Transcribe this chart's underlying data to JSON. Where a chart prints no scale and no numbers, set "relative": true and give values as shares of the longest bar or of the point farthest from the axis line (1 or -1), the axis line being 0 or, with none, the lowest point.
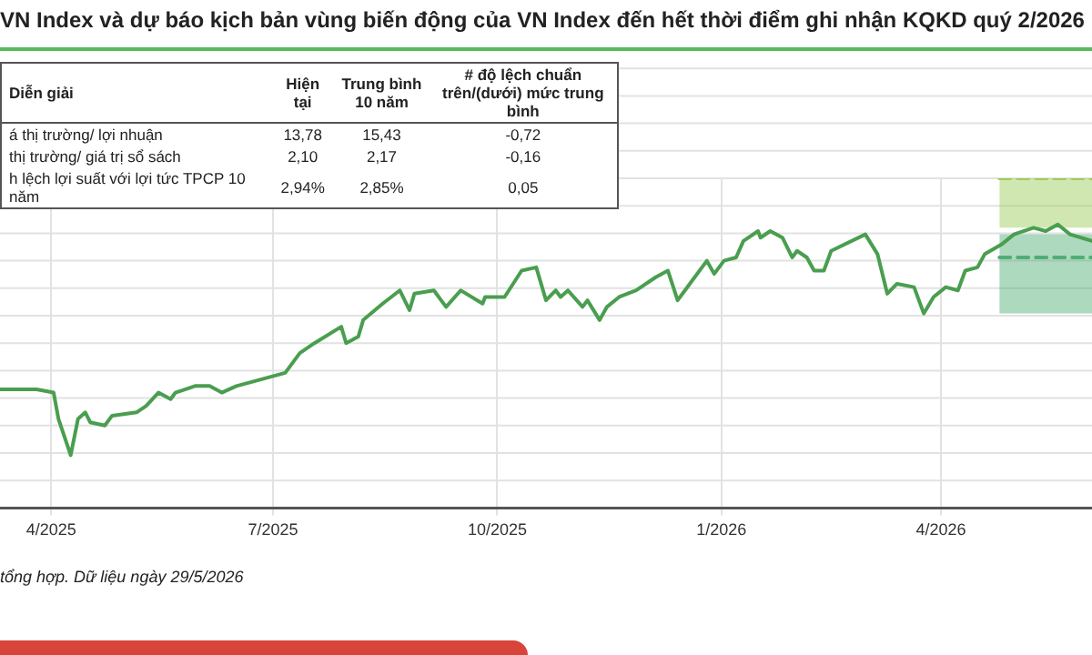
{
  "chart_data": {
    "type": "line",
    "title": "VN Index và dự báo kịch bản vùng biến động của VN Index đến hết thời điểm ghi nhận KQKD quý 2/2026",
    "relative": true,
    "grid": true,
    "marker": "none",
    "xlim": [
      "2025-03-11",
      "2026-06-02"
    ],
    "xticks": [
      {
        "value": "2025-04-01",
        "label": "4/2025"
      },
      {
        "value": "2025-07-01",
        "label": "7/2025"
      },
      {
        "value": "2025-10-01",
        "label": "10/2025"
      },
      {
        "value": "2026-01-01",
        "label": "1/2026"
      },
      {
        "value": "2026-04-01",
        "label": "4/2026"
      }
    ],
    "x": [
      "2025-03-11",
      "2025-03-19",
      "2025-03-26",
      "2025-04-02",
      "2025-04-04",
      "2025-04-09",
      "2025-04-12",
      "2025-04-15",
      "2025-04-17",
      "2025-04-23",
      "2025-04-26",
      "2025-05-06",
      "2025-05-10",
      "2025-05-15",
      "2025-05-20",
      "2025-05-22",
      "2025-05-30",
      "2025-06-05",
      "2025-06-10",
      "2025-06-16",
      "2025-06-26",
      "2025-07-06",
      "2025-07-12",
      "2025-07-18",
      "2025-07-29",
      "2025-07-31",
      "2025-08-05",
      "2025-08-07",
      "2025-08-15",
      "2025-08-22",
      "2025-08-26",
      "2025-08-28",
      "2025-09-05",
      "2025-09-10",
      "2025-09-16",
      "2025-09-25",
      "2025-09-26",
      "2025-10-04",
      "2025-10-11",
      "2025-10-17",
      "2025-10-21",
      "2025-10-25",
      "2025-10-27",
      "2025-10-30",
      "2025-11-05",
      "2025-11-07",
      "2025-11-12",
      "2025-11-15",
      "2025-11-20",
      "2025-11-27",
      "2025-12-05",
      "2025-12-10",
      "2025-12-14",
      "2025-12-17",
      "2025-12-26",
      "2025-12-29",
      "2026-01-02",
      "2026-01-07",
      "2026-01-10",
      "2026-01-16",
      "2026-01-17",
      "2026-01-21",
      "2026-01-26",
      "2026-01-30",
      "2026-02-01",
      "2026-02-05",
      "2026-02-08",
      "2026-02-12",
      "2026-02-15",
      "2026-03-01",
      "2026-03-06",
      "2026-03-10",
      "2026-03-14",
      "2026-03-21",
      "2026-03-25",
      "2026-03-29",
      "2026-04-03",
      "2026-04-08",
      "2026-04-11",
      "2026-04-16",
      "2026-04-19",
      "2026-04-26",
      "2026-05-01",
      "2026-05-09",
      "2026-05-14",
      "2026-05-19",
      "2026-05-24",
      "2026-06-02"
    ],
    "series": [
      {
        "color": "#4a9e4f",
        "line_style": "solid",
        "values": [
          0.36,
          0.36,
          0.36,
          0.35,
          0.27,
          0.16,
          0.27,
          0.29,
          0.26,
          0.25,
          0.28,
          0.29,
          0.31,
          0.35,
          0.33,
          0.35,
          0.37,
          0.37,
          0.35,
          0.37,
          0.39,
          0.41,
          0.47,
          0.5,
          0.55,
          0.5,
          0.52,
          0.57,
          0.62,
          0.66,
          0.6,
          0.65,
          0.66,
          0.61,
          0.66,
          0.62,
          0.64,
          0.64,
          0.72,
          0.73,
          0.63,
          0.66,
          0.64,
          0.66,
          0.61,
          0.63,
          0.57,
          0.61,
          0.64,
          0.66,
          0.7,
          0.72,
          0.63,
          0.66,
          0.75,
          0.71,
          0.75,
          0.76,
          0.81,
          0.84,
          0.82,
          0.84,
          0.82,
          0.76,
          0.78,
          0.76,
          0.72,
          0.72,
          0.78,
          0.83,
          0.77,
          0.65,
          0.68,
          0.67,
          0.59,
          0.64,
          0.67,
          0.66,
          0.72,
          0.73,
          0.77,
          0.8,
          0.83,
          0.85,
          0.84,
          0.86,
          0.83,
          0.81
        ]
      },
      {
        "type": "line",
        "color": "#9ccc5a",
        "line_style": "dashed",
        "x": [
          "2026-04-25",
          "2026-06-02"
        ],
        "values": [
          1,
          1
        ],
        "lower": [
          0.85,
          0.85
        ],
        "upper": [
          1,
          1
        ]
      },
      {
        "type": "line",
        "color": "#4fae73",
        "line_style": "dashed",
        "x": [
          "2026-04-25",
          "2026-06-02"
        ],
        "values": [
          0.76,
          0.76
        ],
        "lower": [
          0.59,
          0.59
        ],
        "upper": [
          0.83,
          0.83
        ]
      }
    ],
    "annotations": [
      "Diễn  giải",
      "Hiện tại",
      "Trung bình 10 năm",
      "# độ lệch chuẩn trên/(dưới) mức trung bình",
      "á thị trường/ lợi nhuận",
      "13,78",
      "15,43",
      "-0,72",
      "thị trường/ giá trị sổ sách",
      "2,10",
      "2,17",
      "-0,16",
      "h lệch lợi suất với lợi tức TPCP 10 năm",
      "2,94%",
      "2,85%",
      "0,05",
      "tổng hợp. Dữ liệu ngày 29/5/2026"
    ]
  }
}
